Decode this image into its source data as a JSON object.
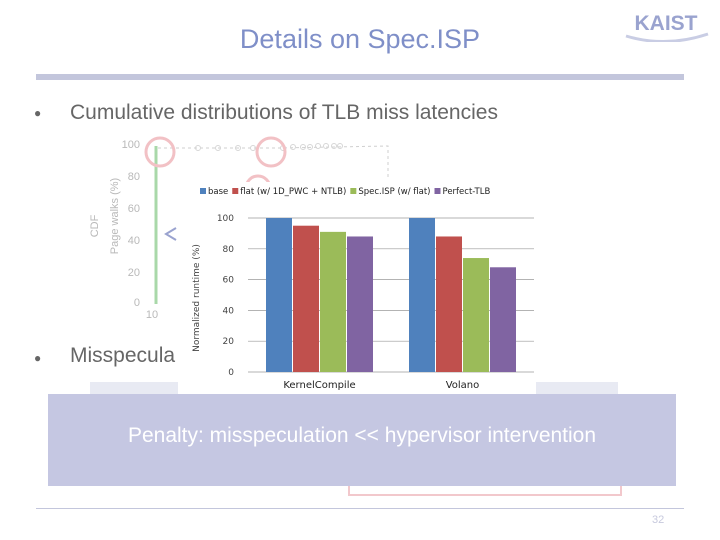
{
  "slide": {
    "title": "Details on Spec.ISP",
    "logo_text": "KAIST",
    "bullet1": "Cumulative distributions of TLB miss latencies",
    "bullet2": "Misspecula",
    "penalty": "Penalty: misspeculation << hypervisor intervention",
    "page_number": "32"
  },
  "background_chart": {
    "ylabel_outer": "CDF",
    "ylabel_inner": "Page walks (%)",
    "yticks": [
      "100",
      "80",
      "60",
      "40",
      "20",
      "0"
    ],
    "xtick": "10"
  },
  "chart_data": {
    "type": "bar",
    "categories": [
      "KernelCompile",
      "Volano"
    ],
    "series": [
      {
        "name": "base",
        "values": [
          100,
          100
        ],
        "color": "#4f81bd"
      },
      {
        "name": "flat (w/ 1D_PWC + NTLB)",
        "values": [
          95,
          88
        ],
        "color": "#c0504d"
      },
      {
        "name": "Spec.ISP (w/ flat)",
        "values": [
          91,
          74
        ],
        "color": "#9bbb59"
      },
      {
        "name": "Perfect-TLB",
        "values": [
          88,
          68
        ],
        "color": "#8064a2"
      }
    ],
    "ylabel": "Normalized runtime (%)",
    "ylim": [
      0,
      100
    ],
    "yticks": [
      0,
      20,
      40,
      60,
      80,
      100
    ],
    "legend_position": "top"
  }
}
